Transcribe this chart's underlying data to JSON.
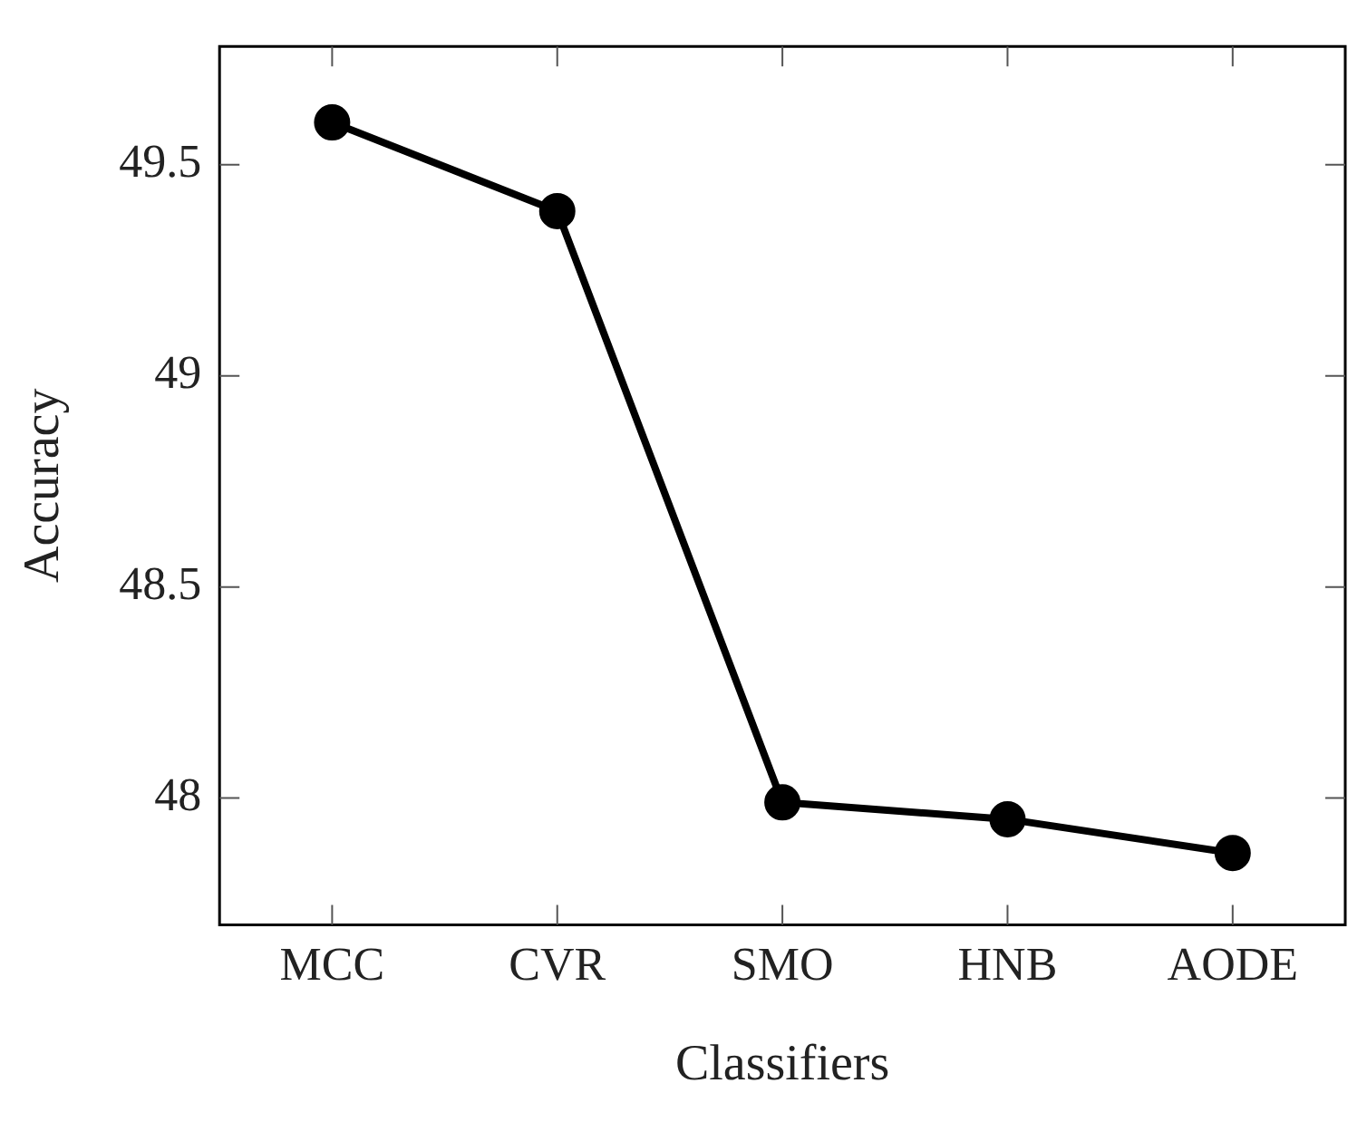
{
  "chart_data": {
    "type": "line",
    "xlabel": "Classifiers",
    "ylabel": "Accuracy",
    "categories": [
      "MCC",
      "CVR",
      "SMO",
      "HNB",
      "AODE"
    ],
    "series": [
      {
        "color": "#000000",
        "values": [
          49.6,
          49.39,
          47.99,
          47.95,
          47.87
        ]
      }
    ],
    "ylim": [
      47.7,
      49.78
    ],
    "yticks": [
      48,
      48.5,
      49,
      49.5
    ],
    "grid": false,
    "legend": false,
    "marker": "circle",
    "line_style": "solid"
  }
}
